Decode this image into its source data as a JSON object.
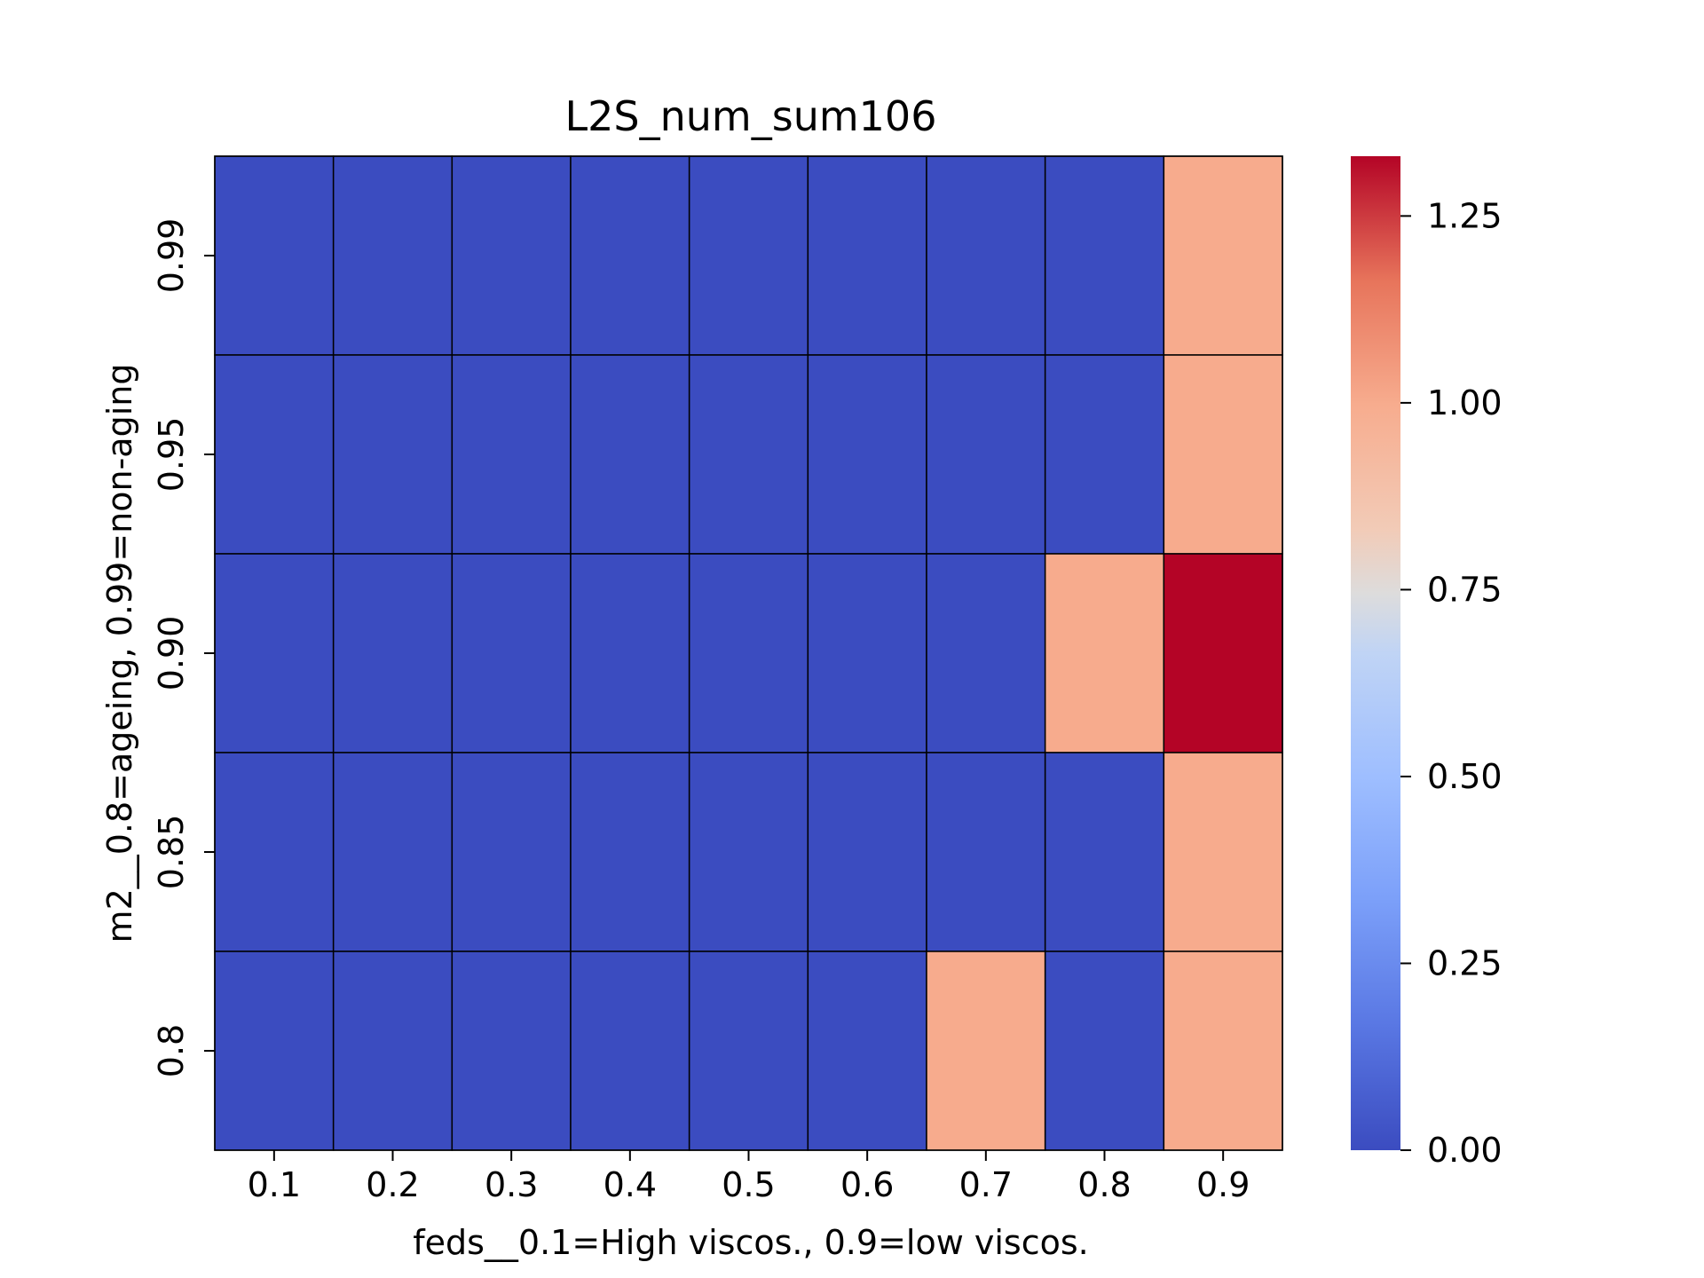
{
  "chart_data": {
    "type": "heatmap",
    "title": "L2S_num_sum106",
    "xlabel": "feds__0.1=High viscos., 0.9=low viscos.",
    "ylabel": "m2__0.8=ageing, 0.99=non-aging",
    "x_categories": [
      "0.1",
      "0.2",
      "0.3",
      "0.4",
      "0.5",
      "0.6",
      "0.7",
      "0.8",
      "0.9"
    ],
    "y_categories": [
      "0.99",
      "0.95",
      "0.90",
      "0.85",
      "0.8"
    ],
    "values": [
      [
        0,
        0,
        0,
        0,
        0,
        0,
        0,
        0,
        1
      ],
      [
        0,
        0,
        0,
        0,
        0,
        0,
        0,
        0,
        1
      ],
      [
        0,
        0,
        0,
        0,
        0,
        0,
        0,
        1,
        1.33
      ],
      [
        0,
        0,
        0,
        0,
        0,
        0,
        0,
        0,
        1
      ],
      [
        0,
        0,
        0,
        0,
        0,
        0,
        1,
        0,
        1
      ]
    ],
    "colorbar": {
      "min": 0,
      "max": 1.33,
      "colormap": "coolwarm",
      "ticks": [
        0,
        0.25,
        0.5,
        0.75,
        1.0,
        1.25
      ],
      "tick_labels": [
        "0.00",
        "0.25",
        "0.50",
        "0.75",
        "1.00",
        "1.25"
      ]
    }
  }
}
